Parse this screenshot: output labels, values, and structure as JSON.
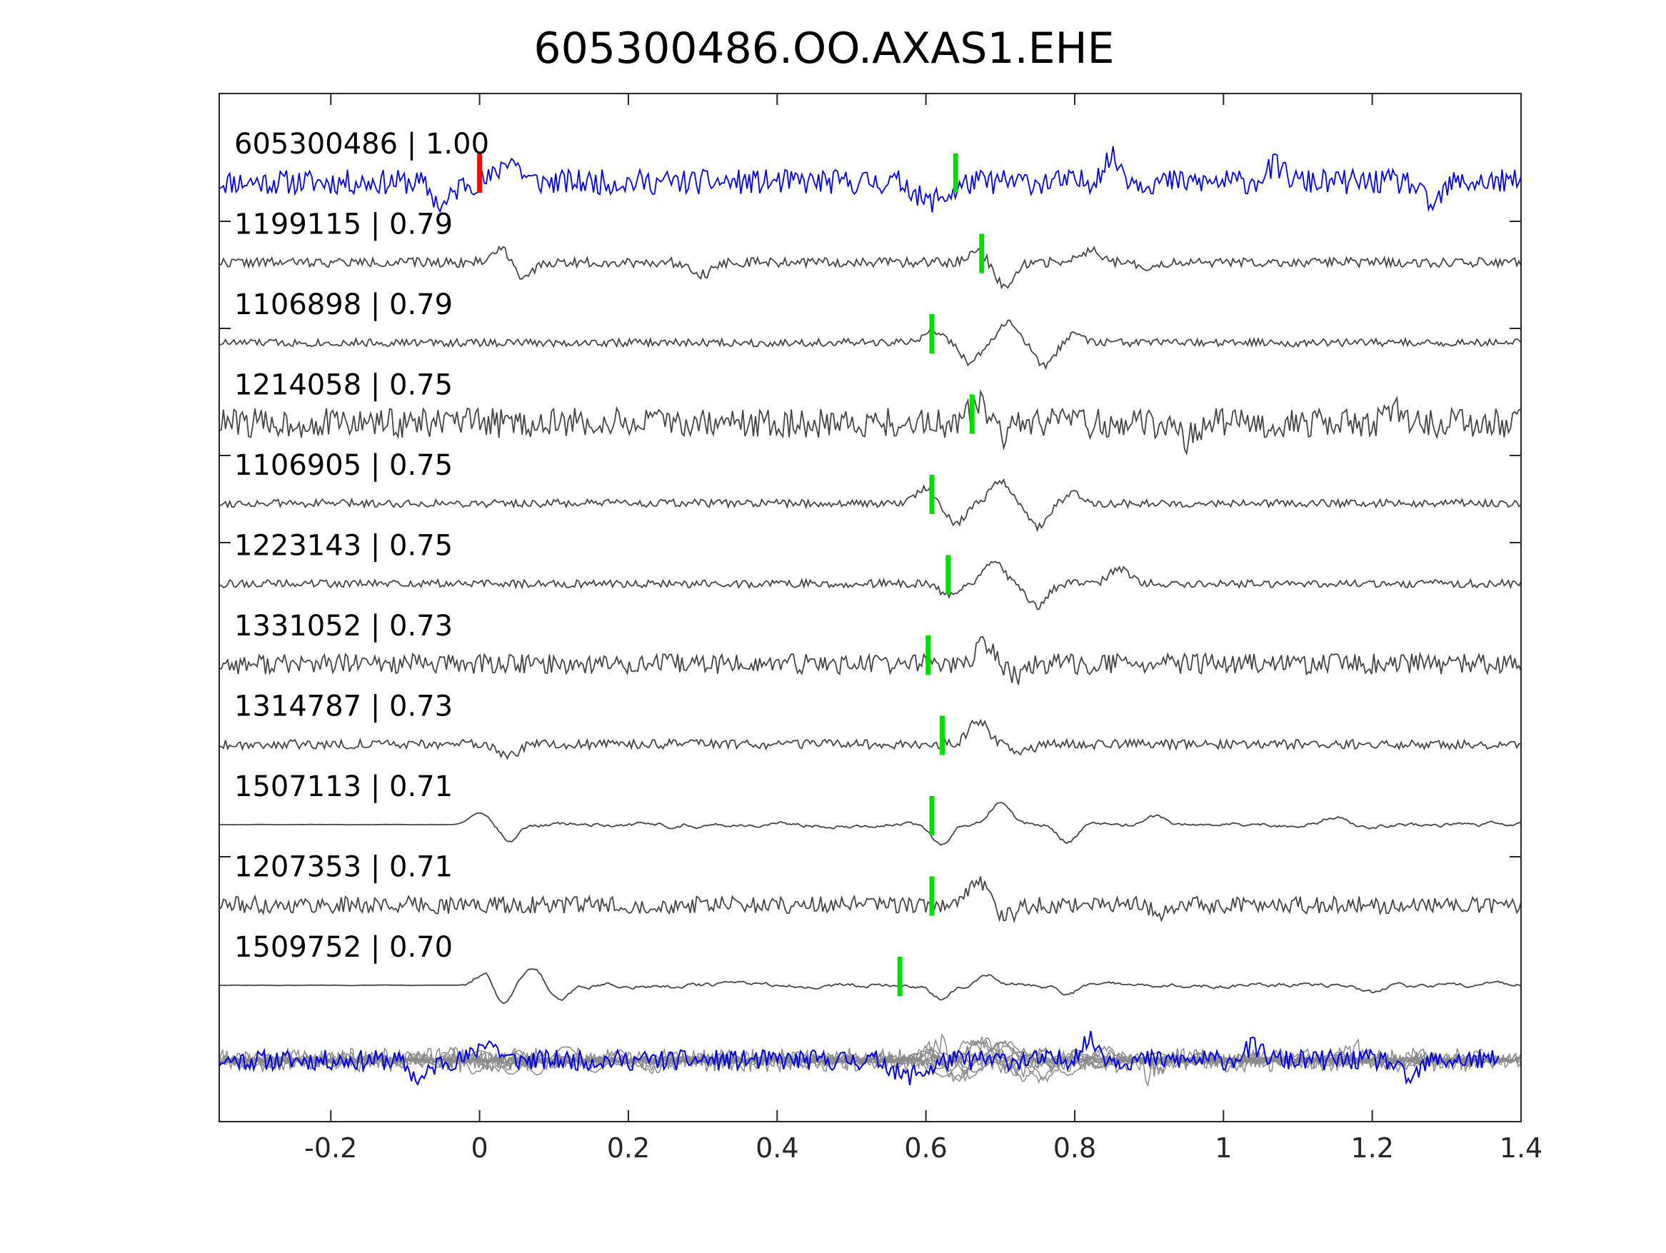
{
  "chart_data": {
    "type": "line",
    "title": "605300486.OO.AXAS1.EHE",
    "xlabel": "",
    "ylabel": "",
    "xlim": [
      -0.35,
      1.4
    ],
    "x_ticks": [
      {
        "value": -0.2,
        "label": "-0.2"
      },
      {
        "value": 0,
        "label": "0"
      },
      {
        "value": 0.2,
        "label": "0.2"
      },
      {
        "value": 0.4,
        "label": "0.4"
      },
      {
        "value": 0.6,
        "label": "0.6"
      },
      {
        "value": 0.8,
        "label": "0.8"
      },
      {
        "value": 1,
        "label": "1"
      },
      {
        "value": 1.2,
        "label": "1.2"
      },
      {
        "value": 1.4,
        "label": "1.4"
      }
    ],
    "grid": false,
    "colors": {
      "template": "#0000ee",
      "trace": "#454545",
      "stack": "#8a8a8a",
      "s_pick": "#ff0000",
      "p_pick": "#00dd00",
      "axis": "#262626"
    },
    "series": [
      {
        "label": "605300486 | 1.00",
        "pick": 0.64,
        "s_pick": 0.0,
        "template": true,
        "features": [
          [
            -0.05,
            -3
          ],
          [
            0.04,
            3
          ],
          [
            0.6,
            -2.5
          ],
          [
            0.63,
            -1.5
          ],
          [
            0.85,
            3
          ],
          [
            1.07,
            2
          ],
          [
            1.28,
            -3
          ]
        ],
        "noise": 1.6,
        "seed": 11
      },
      {
        "label": "1199115 | 0.79",
        "pick": 0.675,
        "features": [
          [
            0.03,
            1.8
          ],
          [
            0.06,
            -2
          ],
          [
            0.3,
            -1.5
          ],
          [
            0.67,
            1.5
          ],
          [
            0.705,
            -3
          ],
          [
            0.82,
            1.5
          ],
          [
            0.9,
            -1
          ]
        ],
        "noise": 0.6,
        "seed": 22
      },
      {
        "label": "1106898 | 0.79",
        "pick": 0.608,
        "features": [
          [
            0.61,
            1.5
          ],
          [
            0.66,
            -2.5
          ],
          [
            0.71,
            2.5
          ],
          [
            0.76,
            -3
          ],
          [
            0.8,
            1
          ]
        ],
        "noise": 0.5,
        "seed": 33
      },
      {
        "label": "1214058 | 0.75",
        "pick": 0.662,
        "features": [
          [
            0.67,
            2.5
          ],
          [
            0.7,
            -1.5
          ],
          [
            0.95,
            -2
          ],
          [
            1.23,
            1.5
          ]
        ],
        "noise": 1.9,
        "seed": 44
      },
      {
        "label": "1106905 | 0.75",
        "pick": 0.608,
        "features": [
          [
            0.6,
            2
          ],
          [
            0.64,
            -2.5
          ],
          [
            0.7,
            3
          ],
          [
            0.75,
            -3
          ],
          [
            0.8,
            1.2
          ]
        ],
        "noise": 0.5,
        "seed": 55
      },
      {
        "label": "1223143 | 0.75",
        "pick": 0.63,
        "features": [
          [
            0.63,
            -1.5
          ],
          [
            0.69,
            3
          ],
          [
            0.75,
            -3
          ],
          [
            0.86,
            2
          ]
        ],
        "noise": 0.5,
        "seed": 66
      },
      {
        "label": "1331052 | 0.73",
        "pick": 0.603,
        "features": [
          [
            0.68,
            2.5
          ],
          [
            0.72,
            -1.5
          ]
        ],
        "noise": 1.3,
        "seed": 77
      },
      {
        "label": "1314787 | 0.73",
        "pick": 0.622,
        "features": [
          [
            0.04,
            -1.5
          ],
          [
            0.67,
            3
          ],
          [
            0.73,
            -1
          ]
        ],
        "noise": 0.6,
        "seed": 88
      },
      {
        "label": "1507113 | 0.71",
        "pick": 0.608,
        "features": [
          [
            0.0,
            1.5
          ],
          [
            0.04,
            -1.8
          ],
          [
            0.62,
            -2.5
          ],
          [
            0.7,
            3
          ],
          [
            0.79,
            -2
          ],
          [
            0.91,
            1
          ],
          [
            1.15,
            1
          ]
        ],
        "noise": 0.45,
        "lowpass": true,
        "quiet_before": 0.0,
        "seed": 99
      },
      {
        "label": "1207353 | 0.71",
        "pick": 0.608,
        "features": [
          [
            0.67,
            3
          ],
          [
            0.71,
            -1.5
          ],
          [
            0.92,
            -1
          ]
        ],
        "noise": 1.1,
        "seed": 111
      },
      {
        "label": "1509752 | 0.70",
        "pick": 0.565,
        "features": [
          [
            0.01,
            2
          ],
          [
            0.03,
            -2.5
          ],
          [
            0.07,
            2.5
          ],
          [
            0.11,
            -2
          ],
          [
            0.62,
            -1.5
          ],
          [
            0.68,
            1.5
          ],
          [
            0.79,
            -1
          ],
          [
            1.2,
            -1
          ]
        ],
        "noise": 0.45,
        "lowpass": true,
        "quiet_before": -0.02,
        "seed": 122
      }
    ]
  }
}
